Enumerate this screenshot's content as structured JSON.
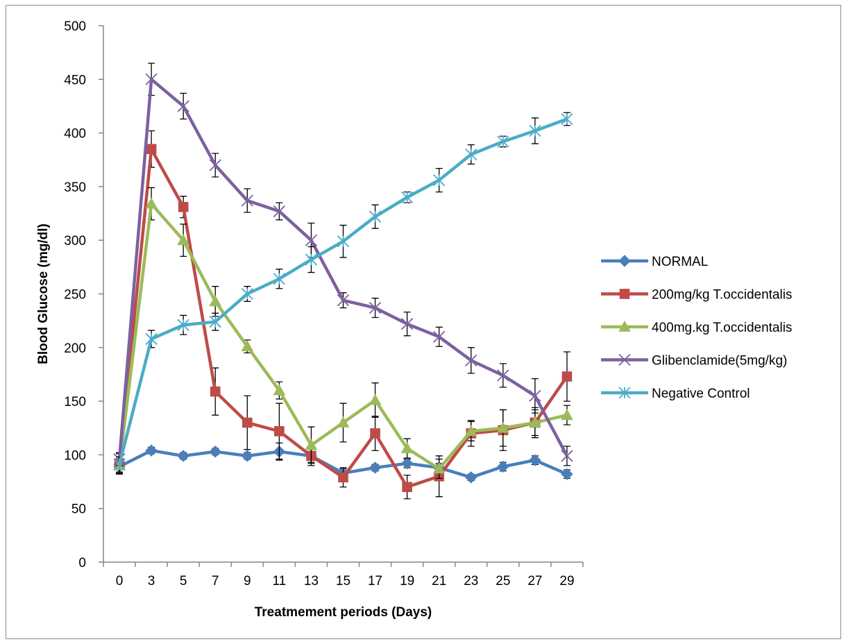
{
  "chart_data": {
    "type": "line",
    "title": "",
    "xlabel": "Treatmement periods (Days)",
    "ylabel": "Blood Glucose (mg/dl)",
    "ylim": [
      0,
      500
    ],
    "yticks": [
      0,
      50,
      100,
      150,
      200,
      250,
      300,
      350,
      400,
      450,
      500
    ],
    "categories": [
      "0",
      "3",
      "5",
      "7",
      "9",
      "11",
      "13",
      "15",
      "17",
      "19",
      "21",
      "23",
      "25",
      "27",
      "29"
    ],
    "grid": false,
    "legend_position": "right",
    "series": [
      {
        "name": "NORMAL",
        "color": "#4a7ebb",
        "marker": "diamond",
        "values": [
          89,
          104,
          99,
          103,
          99,
          103,
          99,
          83,
          88,
          92,
          88,
          79,
          89,
          95,
          82
        ],
        "errors": [
          6,
          3,
          3,
          3,
          3,
          8,
          6,
          4,
          3,
          4,
          4,
          3,
          4,
          4,
          4
        ]
      },
      {
        "name": "200mg/kg T.occidentalis",
        "color": "#be4b48",
        "marker": "square",
        "values": [
          92,
          385,
          331,
          159,
          130,
          122,
          99,
          79,
          120,
          70,
          80,
          120,
          123,
          130,
          173
        ],
        "errors": [
          9,
          17,
          10,
          22,
          25,
          26,
          9,
          9,
          16,
          11,
          19,
          12,
          19,
          12,
          23
        ]
      },
      {
        "name": "400mg.kg T.occidentalis",
        "color": "#9bbb59",
        "marker": "triangle",
        "values": [
          90,
          334,
          300,
          243,
          201,
          160,
          109,
          130,
          151,
          106,
          87,
          122,
          125,
          130,
          137
        ],
        "errors": [
          8,
          15,
          15,
          14,
          6,
          8,
          17,
          18,
          16,
          9,
          9,
          9,
          17,
          14,
          9
        ]
      },
      {
        "name": "Glibenclamide(5mg/kg)",
        "color": "#7d60a0",
        "marker": "x",
        "values": [
          96,
          450,
          425,
          370,
          337,
          327,
          300,
          244,
          237,
          222,
          210,
          188,
          174,
          155,
          99
        ],
        "errors": [
          6,
          15,
          12,
          11,
          11,
          8,
          16,
          7,
          9,
          11,
          9,
          12,
          11,
          16,
          9
        ]
      },
      {
        "name": "Negative Control",
        "color": "#4bacc6",
        "marker": "star",
        "values": [
          91,
          208,
          221,
          224,
          250,
          264,
          282,
          299,
          322,
          340,
          356,
          380,
          392,
          402,
          413
        ],
        "errors": [
          7,
          8,
          9,
          8,
          7,
          9,
          12,
          15,
          11,
          5,
          11,
          9,
          5,
          12,
          6
        ]
      }
    ]
  }
}
